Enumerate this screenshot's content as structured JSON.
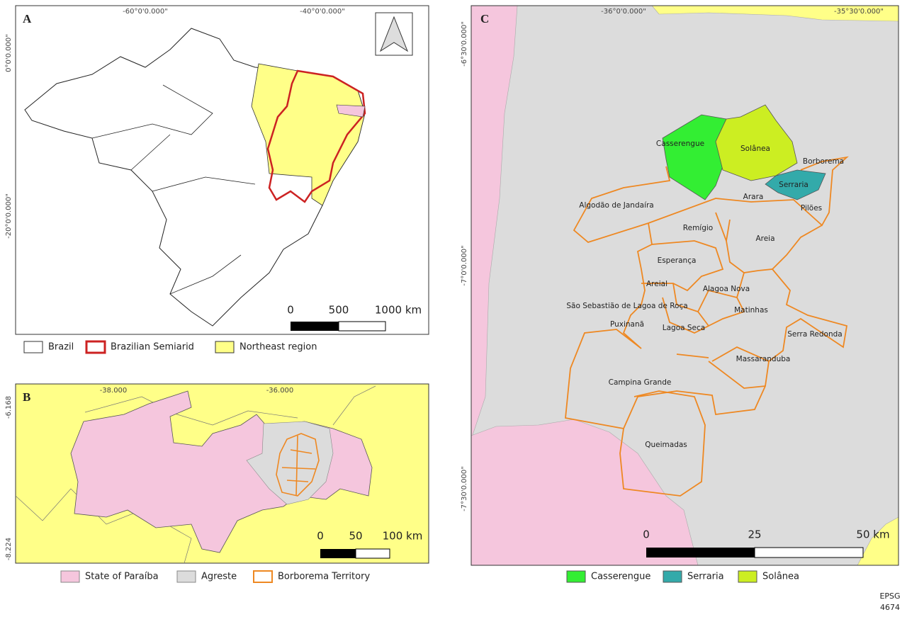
{
  "panel_a": {
    "label": "A",
    "top_coords": [
      "-60°0'0.000\"",
      "-40°0'0.000\""
    ],
    "left_coords": [
      "0°0'0.000\"",
      "-20°0'0.000\""
    ],
    "scale": [
      "0",
      "500",
      "1000 km"
    ],
    "legend": [
      "Brazil",
      "Brazilian Semiarid",
      "Northeast region"
    ]
  },
  "panel_b": {
    "label": "B",
    "top_coords": [
      "-38.000",
      "-36.000"
    ],
    "left_coords": [
      "-6.168",
      "-8.224"
    ],
    "scale": [
      "0",
      "50",
      "100 km"
    ],
    "legend": [
      "State of Paraíba",
      "Agreste",
      "Borborema Territory"
    ]
  },
  "panel_c": {
    "label": "C",
    "top_coords": [
      "-36°0'0.000\"",
      "-35°30'0.000\""
    ],
    "left_coords": [
      "-6°30'0.000\"",
      "-7°0'0.000\"",
      "-7°30'0.000\""
    ],
    "municipalities": [
      "Casserengue",
      "Solânea",
      "Borborema",
      "Serraria",
      "Arara",
      "Pilões",
      "Algodão de Jandaíra",
      "Remígio",
      "Areia",
      "Esperança",
      "Areial",
      "Alagoa Nova",
      "São Sebastião de Lagoa de Roça",
      "Matinhas",
      "Puxinanã",
      "Lagoa Seca",
      "Serra Redonda",
      "Massaranduba",
      "Campina Grande",
      "Queimadas"
    ],
    "scale": [
      "0",
      "25",
      "50 km"
    ],
    "legend": [
      "Casserengue",
      "Serraria",
      "Solânea"
    ]
  },
  "epsg": [
    "EPSG",
    "4674"
  ]
}
